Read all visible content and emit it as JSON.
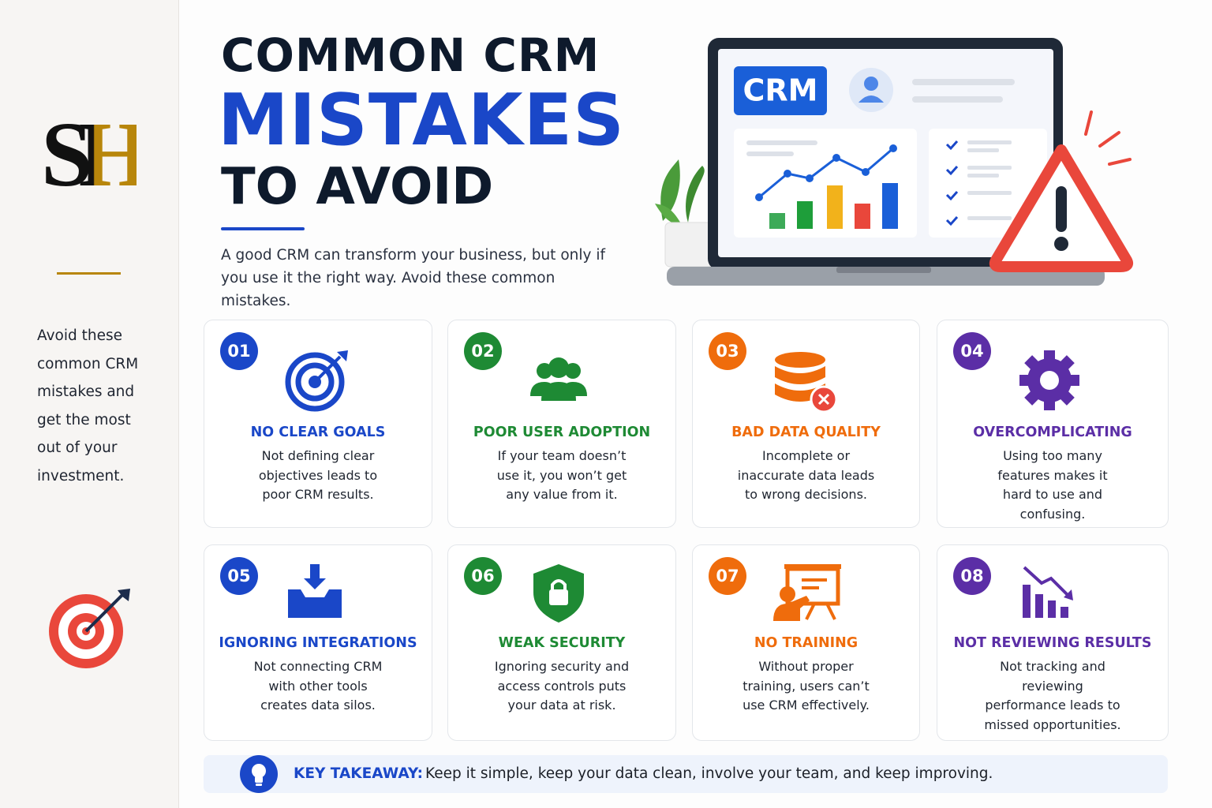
{
  "sidebar": {
    "logo": "SH",
    "text": "Avoid these common CRM mistakes and get the most out of your investment."
  },
  "header": {
    "title_line1": "COMMON CRM",
    "title_line2": "MISTAKES",
    "title_line3": "TO AVOID",
    "intro": "A good CRM can transform your business, but only if you use it the right way. Avoid these common mistakes."
  },
  "illustration": {
    "crm_label": "CRM"
  },
  "cards": [
    {
      "number": "01",
      "title": "NO CLEAR GOALS",
      "description": "Not defining clear objectives leads to poor CRM results.",
      "color": "#1a47c8"
    },
    {
      "number": "02",
      "title": "POOR USER ADOPTION",
      "description": "If your team doesn’t use it, you won’t get any value from it.",
      "color": "#1e8a34"
    },
    {
      "number": "03",
      "title": "BAD DATA QUALITY",
      "description": "Incomplete or inaccurate data leads to wrong decisions.",
      "color": "#ef6c0c"
    },
    {
      "number": "04",
      "title": "OVERCOMPLICATING",
      "description": "Using too many features makes it hard to use and confusing.",
      "color": "#5b2ea6"
    },
    {
      "number": "05",
      "title": "IGNORING INTEGRATIONS",
      "description": "Not connecting CRM with other tools creates data silos.",
      "color": "#1a47c8"
    },
    {
      "number": "06",
      "title": "WEAK SECURITY",
      "description": "Ignoring security and access controls puts your data at risk.",
      "color": "#1e8a34"
    },
    {
      "number": "07",
      "title": "NO TRAINING",
      "description": "Without proper training, users can’t use CRM effectively.",
      "color": "#ef6c0c"
    },
    {
      "number": "08",
      "title": "NOT REVIEWING RESULTS",
      "description": "Not tracking and reviewing performance leads to missed opportunities.",
      "color": "#5b2ea6"
    }
  ],
  "takeaway": {
    "label": "KEY TAKEAWAY:",
    "text": "Keep it simple, keep your data clean, involve your team, and keep improving."
  }
}
